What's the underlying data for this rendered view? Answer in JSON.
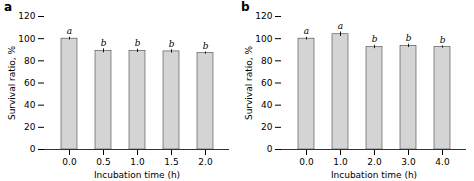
{
  "chart_data": [
    {
      "type": "bar",
      "title": "a",
      "categories": [
        "0.0",
        "0.5",
        "1.0",
        "1.5",
        "2.0"
      ],
      "values": [
        100,
        89,
        89,
        88.5,
        87
      ],
      "errors": [
        1.2,
        1.8,
        1.5,
        1.5,
        1.0
      ],
      "annotations": [
        "a",
        "b",
        "b",
        "b",
        "b"
      ],
      "x_label": "Incubation time (h)",
      "y_label": "Survival ratio, %",
      "ylim": [
        0,
        120
      ],
      "yticks": [
        0,
        20,
        40,
        60,
        80,
        100,
        120
      ],
      "color": "#d4d4d4",
      "grid": false
    },
    {
      "type": "bar",
      "title": "b",
      "categories": [
        "0.0",
        "1.0",
        "2.0",
        "3.0",
        "4.0"
      ],
      "values": [
        100,
        104,
        92.5,
        93.5,
        92.5
      ],
      "errors": [
        1.2,
        2.0,
        1.5,
        1.5,
        1.0
      ],
      "annotations": [
        "a",
        "a",
        "b",
        "b",
        "b"
      ],
      "x_label": "Incubation time (h)",
      "y_label": "Survival ratio, %",
      "ylim": [
        0,
        120
      ],
      "yticks": [
        0,
        20,
        40,
        60,
        80,
        100,
        120
      ],
      "color": "#d4d4d4",
      "grid": false
    }
  ]
}
